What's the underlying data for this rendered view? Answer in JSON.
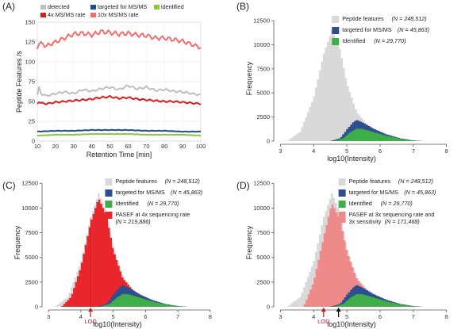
{
  "chart_data": [
    {
      "panel": "(A)",
      "type": "line",
      "xlabel": "Retention Time [min]",
      "ylabel": "Peptide Features /s",
      "xlim": [
        10,
        100
      ],
      "ylim": [
        0,
        150
      ],
      "xticks": [
        10,
        20,
        30,
        40,
        50,
        60,
        70,
        80,
        90,
        100
      ],
      "yticks": [
        0,
        25,
        50,
        75,
        100,
        125,
        150
      ],
      "legend_position": "top",
      "series": [
        {
          "name": "detected",
          "color": "#bfbfbf",
          "x": [
            10,
            12,
            15,
            20,
            25,
            30,
            35,
            40,
            45,
            50,
            55,
            60,
            65,
            70,
            75,
            80,
            85,
            90,
            95,
            100
          ],
          "y": [
            75,
            60,
            57,
            60,
            62,
            60,
            65,
            63,
            66,
            68,
            65,
            70,
            66,
            68,
            64,
            65,
            63,
            62,
            60,
            58
          ]
        },
        {
          "name": "targeted for MS/MS",
          "color": "#1f4e8c",
          "x": [
            10,
            20,
            30,
            40,
            50,
            60,
            70,
            80,
            90,
            100
          ],
          "y": [
            12,
            13,
            13,
            14,
            14,
            14,
            13,
            13,
            12,
            12
          ]
        },
        {
          "name": "identified",
          "color": "#8cc63f",
          "x": [
            10,
            20,
            30,
            40,
            50,
            60,
            70,
            80,
            90,
            100
          ],
          "y": [
            7,
            8,
            8,
            9,
            9,
            9,
            8,
            8,
            8,
            7
          ]
        },
        {
          "name": "4x MS/MS rate",
          "color": "#e31a1c",
          "x": [
            10,
            12,
            15,
            20,
            25,
            30,
            35,
            40,
            45,
            50,
            55,
            60,
            65,
            70,
            75,
            80,
            85,
            90,
            95,
            100
          ],
          "y": [
            52,
            48,
            47,
            49,
            50,
            51,
            52,
            53,
            55,
            56,
            54,
            55,
            53,
            52,
            51,
            50,
            50,
            49,
            48,
            47
          ]
        },
        {
          "name": "10x MS/MS rate",
          "color": "#f07070",
          "x": [
            10,
            12,
            15,
            20,
            25,
            30,
            35,
            40,
            45,
            50,
            55,
            60,
            65,
            70,
            75,
            80,
            85,
            90,
            95,
            100
          ],
          "y": [
            125,
            123,
            120,
            125,
            130,
            135,
            136,
            134,
            138,
            137,
            135,
            136,
            134,
            133,
            130,
            130,
            128,
            126,
            122,
            118
          ]
        }
      ]
    },
    {
      "panel": "(B)",
      "type": "area",
      "xlabel": "log10(Intensity)",
      "ylabel": "Frequency",
      "xlim": [
        2.8,
        8.2
      ],
      "ylim": [
        0,
        13000
      ],
      "xticks": [
        3,
        4,
        5,
        6,
        7,
        8
      ],
      "yticks": [
        0,
        2500,
        5000,
        7500,
        10000,
        12500
      ],
      "legend_position": "top-right",
      "series": [
        {
          "name": "Peptide features",
          "n": "(N = 248,512)",
          "color": "#d9d9d9",
          "x": [
            3.2,
            3.6,
            4.0,
            4.3,
            4.55,
            4.8,
            5.0,
            5.3,
            5.6,
            6.0,
            6.5,
            7.0,
            7.3
          ],
          "y": [
            0,
            1000,
            4500,
            9000,
            11500,
            9500,
            6000,
            3000,
            1800,
            900,
            300,
            50,
            0
          ]
        },
        {
          "name": "targeted for MS/MS",
          "n": "(N = 45,863)",
          "color": "#2e4f8f",
          "x": [
            4.5,
            4.8,
            5.0,
            5.2,
            5.3,
            5.5,
            5.8,
            6.2,
            6.6,
            7.0,
            7.3
          ],
          "y": [
            0,
            300,
            1200,
            2000,
            2200,
            1900,
            1300,
            700,
            300,
            80,
            0
          ]
        },
        {
          "name": "Identified",
          "n": "(N = 29,770)",
          "color": "#3fae49",
          "x": [
            4.6,
            4.9,
            5.1,
            5.3,
            5.5,
            5.8,
            6.2,
            6.6,
            7.0,
            7.2
          ],
          "y": [
            0,
            300,
            900,
            1300,
            1250,
            950,
            550,
            250,
            60,
            0
          ]
        }
      ]
    },
    {
      "panel": "(C)",
      "type": "area",
      "xlabel": "log10(Intensity)",
      "ylabel": "Frequency",
      "xlim": [
        2.8,
        8.2
      ],
      "ylim": [
        0,
        13000
      ],
      "xticks": [
        3,
        4,
        5,
        6,
        7,
        8
      ],
      "yticks": [
        0,
        2500,
        5000,
        7500,
        10000,
        12500
      ],
      "legend_position": "top-right",
      "annotation": {
        "text": "LOD",
        "x": 4.3,
        "color": "#c0191f"
      },
      "series": [
        {
          "name": "Peptide features",
          "n": "(N = 248,512)",
          "color": "#d9d9d9",
          "x": [
            3.2,
            3.6,
            4.0,
            4.3,
            4.55,
            4.8,
            5.0,
            5.3,
            5.6,
            6.0,
            6.5,
            7.0,
            7.3
          ],
          "y": [
            0,
            1000,
            4500,
            9000,
            11500,
            9500,
            6000,
            3000,
            1800,
            900,
            300,
            50,
            0
          ]
        },
        {
          "name": "PASEF at 4x sequencing rate",
          "n": "(N = 219,886)",
          "color": "#e8262b",
          "x": [
            3.4,
            3.7,
            4.0,
            4.3,
            4.55,
            4.8,
            5.0,
            5.3,
            5.6,
            6.0,
            6.5,
            7.0,
            7.3
          ],
          "y": [
            0,
            1000,
            4000,
            8500,
            11000,
            9200,
            5800,
            2900,
            1700,
            850,
            280,
            50,
            0
          ]
        },
        {
          "name": "targeted for MS/MS",
          "n": "(N = 45,863)",
          "color": "#2e4f8f",
          "x": [
            4.5,
            4.8,
            5.0,
            5.2,
            5.3,
            5.5,
            5.8,
            6.2,
            6.6,
            7.0,
            7.3
          ],
          "y": [
            0,
            300,
            1200,
            2000,
            2200,
            1900,
            1300,
            700,
            300,
            80,
            0
          ]
        },
        {
          "name": "Identified",
          "n": "(N = 29,770)",
          "color": "#3fae49",
          "x": [
            4.6,
            4.9,
            5.1,
            5.3,
            5.5,
            5.8,
            6.2,
            6.6,
            7.0,
            7.2
          ],
          "y": [
            0,
            300,
            900,
            1300,
            1250,
            950,
            550,
            250,
            60,
            0
          ]
        }
      ],
      "legend_order": [
        0,
        2,
        3,
        1
      ]
    },
    {
      "panel": "(D)",
      "type": "area",
      "xlabel": "log10(Intensity)",
      "ylabel": "Frequency",
      "xlim": [
        2.8,
        8.2
      ],
      "ylim": [
        0,
        13000
      ],
      "xticks": [
        3,
        4,
        5,
        6,
        7,
        8
      ],
      "yticks": [
        0,
        2500,
        5000,
        7500,
        10000,
        12500
      ],
      "legend_position": "top-right",
      "annotation": {
        "text": "LOD",
        "x": 4.3,
        "color": "#c0191f",
        "second_arrow_x": 4.75
      },
      "series": [
        {
          "name": "Peptide features",
          "n": "(N = 248,512)",
          "color": "#d9d9d9",
          "x": [
            3.2,
            3.6,
            4.0,
            4.3,
            4.55,
            4.8,
            5.0,
            5.3,
            5.6,
            6.0,
            6.5,
            7.0,
            7.3
          ],
          "y": [
            0,
            1000,
            4500,
            9000,
            11500,
            9500,
            6000,
            3000,
            1800,
            900,
            300,
            50,
            0
          ]
        },
        {
          "name": "PASEF at 3x sequencing rate and 3x sensitivity",
          "n": "(N = 171,468)",
          "color": "#ee8a8a",
          "x": [
            3.7,
            4.0,
            4.3,
            4.55,
            4.8,
            5.0,
            5.3,
            5.6,
            6.0,
            6.5,
            7.0,
            7.3
          ],
          "y": [
            0,
            2500,
            7000,
            10500,
            8800,
            5600,
            2800,
            1650,
            820,
            270,
            45,
            0
          ]
        },
        {
          "name": "targeted for MS/MS",
          "n": "(N = 45,863)",
          "color": "#2e4f8f",
          "x": [
            4.5,
            4.8,
            5.0,
            5.2,
            5.3,
            5.5,
            5.8,
            6.2,
            6.6,
            7.0,
            7.3
          ],
          "y": [
            0,
            300,
            1200,
            2000,
            2200,
            1900,
            1300,
            700,
            300,
            80,
            0
          ]
        },
        {
          "name": "Identified",
          "n": "(N = 29,770)",
          "color": "#3fae49",
          "x": [
            4.6,
            4.9,
            5.1,
            5.3,
            5.5,
            5.8,
            6.2,
            6.6,
            7.0,
            7.2
          ],
          "y": [
            0,
            300,
            900,
            1300,
            1250,
            950,
            550,
            250,
            60,
            0
          ]
        }
      ],
      "legend_order": [
        0,
        2,
        3,
        1
      ]
    }
  ]
}
